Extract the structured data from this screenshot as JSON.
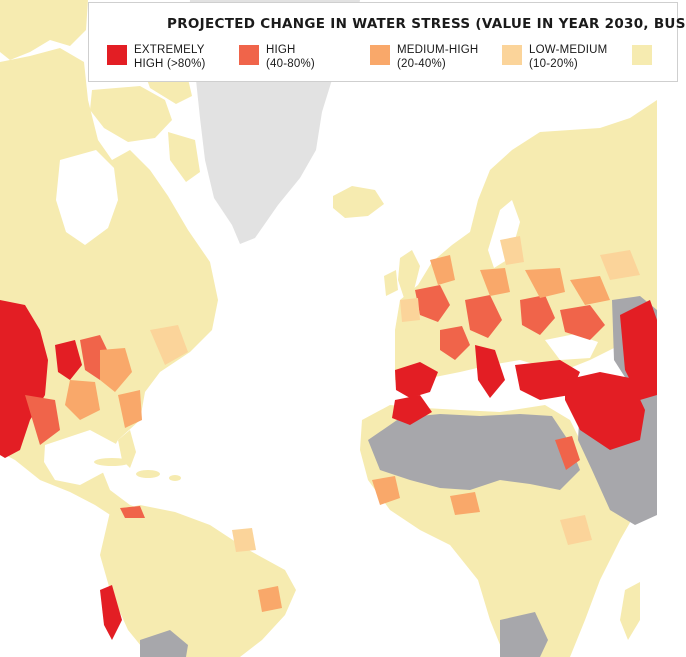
{
  "legend": {
    "title": "PROJECTED CHANGE IN WATER STRESS  (VALUE IN YEAR 2030, BUS",
    "items": [
      {
        "line1": "EXTREMELY",
        "line2": "HIGH (>80%)",
        "color": "#e31e24"
      },
      {
        "line1": "HIGH",
        "line2": "(40-80%)",
        "color": "#f0644a"
      },
      {
        "line1": "MEDIUM-HIGH",
        "line2": "(20-40%)",
        "color": "#f9a86a"
      },
      {
        "line1": "LOW-MEDIUM",
        "line2": "(10-20%)",
        "color": "#fbd49a"
      },
      {
        "line1": "",
        "line2": "",
        "color": "#f6ebb0"
      }
    ]
  },
  "colors": {
    "ocean": "#ffffff",
    "land_low": "#f6ebb0",
    "arid": "#a7a7ab",
    "ice": "#e2e2e2",
    "extremely_high": "#e31e24",
    "high": "#f0644a",
    "medium_high": "#f9a86a",
    "low_medium": "#fbd49a"
  }
}
